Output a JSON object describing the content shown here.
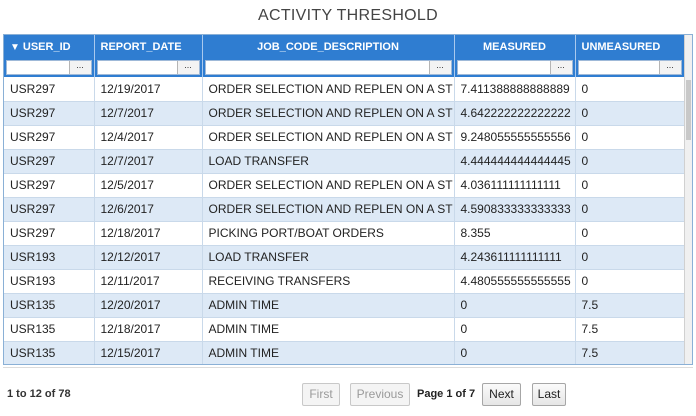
{
  "title": "ACTIVITY THRESHOLD",
  "columns": [
    {
      "label": "USER_ID",
      "sort_icon": "sort-down-arrow"
    },
    {
      "label": "REPORT_DATE"
    },
    {
      "label": "JOB_CODE_DESCRIPTION"
    },
    {
      "label": "MEASURED"
    },
    {
      "label": "UNMEASURED"
    }
  ],
  "filter_button_label": "...",
  "sort_arrow_glyph": "▼",
  "rows": [
    [
      "USR297",
      "12/19/2017",
      "ORDER SELECTION AND REPLEN ON A ST",
      "7.411388888888889",
      "0"
    ],
    [
      "USR297",
      "12/7/2017",
      "ORDER SELECTION AND REPLEN ON A ST",
      "4.642222222222222",
      "0"
    ],
    [
      "USR297",
      "12/4/2017",
      "ORDER SELECTION AND REPLEN ON A ST",
      "9.248055555555556",
      "0"
    ],
    [
      "USR297",
      "12/7/2017",
      "LOAD TRANSFER",
      "4.444444444444445",
      "0"
    ],
    [
      "USR297",
      "12/5/2017",
      "ORDER SELECTION AND REPLEN ON A ST",
      "4.036111111111111",
      "0"
    ],
    [
      "USR297",
      "12/6/2017",
      "ORDER SELECTION AND REPLEN ON A ST",
      "4.590833333333333",
      "0"
    ],
    [
      "USR297",
      "12/18/2017",
      "PICKING PORT/BOAT ORDERS",
      "8.355",
      "0"
    ],
    [
      "USR193",
      "12/12/2017",
      "LOAD TRANSFER",
      "4.243611111111111",
      "0"
    ],
    [
      "USR193",
      "12/11/2017",
      "RECEIVING TRANSFERS",
      "4.480555555555555",
      "0"
    ],
    [
      "USR135",
      "12/20/2017",
      "ADMIN TIME",
      "0",
      "7.5"
    ],
    [
      "USR135",
      "12/18/2017",
      "ADMIN TIME",
      "0",
      "7.5"
    ],
    [
      "USR135",
      "12/15/2017",
      "ADMIN TIME",
      "0",
      "7.5"
    ]
  ],
  "footer": {
    "record_count": "1 to 12 of 78",
    "first_label": "First",
    "previous_label": "Previous",
    "page_info": "Page 1 of 7",
    "next_label": "Next",
    "last_label": "Last"
  },
  "colors": {
    "header_bg": "#2f7dd1",
    "row_alt_bg": "#dde9f6"
  }
}
